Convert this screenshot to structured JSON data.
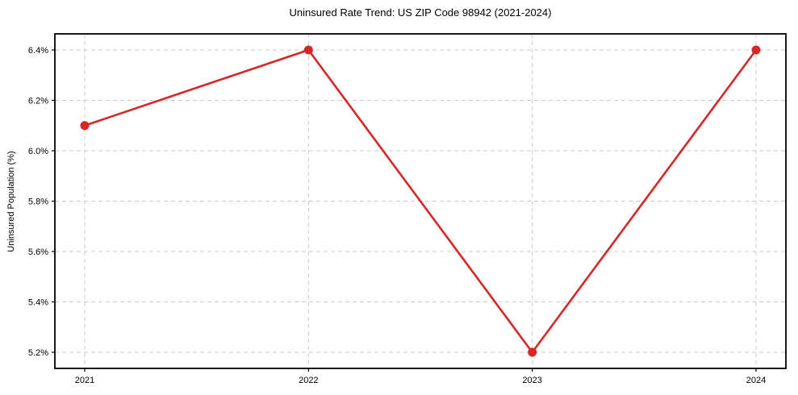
{
  "chart": {
    "title": "Uninsured Rate Trend: US ZIP Code 98942 (2021-2024)",
    "ylabel": "Uninsured Population (%)"
  },
  "chart_data": {
    "type": "line",
    "title": "Uninsured Rate Trend: US ZIP Code 98942 (2021-2024)",
    "xlabel": "",
    "ylabel": "Uninsured Population (%)",
    "categories": [
      "2021",
      "2022",
      "2023",
      "2024"
    ],
    "values": [
      6.1,
      6.4,
      5.2,
      6.4
    ],
    "ytick_labels": [
      "5.2%",
      "5.4%",
      "5.6%",
      "5.8%",
      "6.0%",
      "6.2%",
      "6.4%"
    ],
    "ytick_values": [
      5.2,
      5.4,
      5.6,
      5.8,
      6.0,
      6.2,
      6.4
    ],
    "ylim": [
      5.136,
      6.464
    ],
    "grid": true,
    "legend": false,
    "colors": {
      "line": "#d62728",
      "marker": "#d62728",
      "grid": "#c9c9c9",
      "axis_border": "#000000",
      "text": "#000000",
      "background": "#ffffff"
    }
  }
}
